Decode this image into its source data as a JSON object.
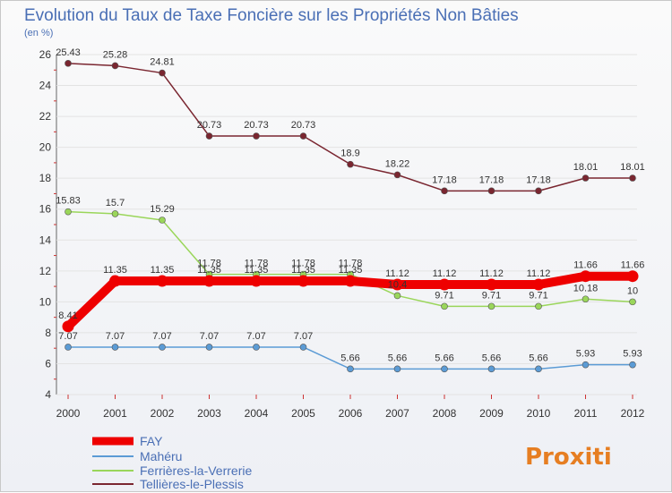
{
  "chart_data": {
    "type": "line",
    "title": "Evolution du Taux de Taxe Foncière sur les Propriétés Non Bâties",
    "unit_label": "(en %)",
    "ylim": [
      4,
      26
    ],
    "yticks": [
      4,
      6,
      8,
      10,
      12,
      14,
      16,
      18,
      20,
      22,
      24,
      26
    ],
    "categories": [
      "2000",
      "2001",
      "2002",
      "2003",
      "2004",
      "2005",
      "2006",
      "2007",
      "2008",
      "2009",
      "2010",
      "2011",
      "2012"
    ],
    "series": [
      {
        "name": "Tellières-le-Plessis",
        "color": "#7a2630",
        "values": [
          25.43,
          25.28,
          24.81,
          20.73,
          20.73,
          20.73,
          18.9,
          18.22,
          17.18,
          17.18,
          17.18,
          18.01,
          18.01
        ],
        "labels": [
          "25.43",
          "25.28",
          "24.81",
          "20.73",
          "20.73",
          "20.73",
          "18.9",
          "18.22",
          "17.18",
          "17.18",
          "17.18",
          "18.01",
          "18.01"
        ]
      },
      {
        "name": "Ferrières-la-Verrerie",
        "color": "#9ad65a",
        "values": [
          15.83,
          15.7,
          15.29,
          11.78,
          11.78,
          11.78,
          11.78,
          10.4,
          9.71,
          9.71,
          9.71,
          10.18,
          10
        ],
        "labels": [
          "15.83",
          "15.7",
          "15.29",
          "11.78",
          "11.78",
          "11.78",
          "11.78",
          "10.4",
          "9.71",
          "9.71",
          "9.71",
          "10.18",
          "10"
        ]
      },
      {
        "name": "Mahéru",
        "color": "#5b9bd5",
        "values": [
          7.07,
          7.07,
          7.07,
          7.07,
          7.07,
          7.07,
          5.66,
          5.66,
          5.66,
          5.66,
          5.66,
          5.93,
          5.93
        ],
        "labels": [
          "7.07",
          "7.07",
          "7.07",
          "7.07",
          "7.07",
          "7.07",
          "5.66",
          "5.66",
          "5.66",
          "5.66",
          "5.66",
          "5.93",
          "5.93"
        ]
      },
      {
        "name": "FAY",
        "color": "#ee0000",
        "values": [
          8.41,
          11.35,
          11.35,
          11.35,
          11.35,
          11.35,
          11.35,
          11.12,
          11.12,
          11.12,
          11.12,
          11.66,
          11.66
        ],
        "labels": [
          "8.41",
          "11.35",
          "11.35",
          "11.35",
          "11.35",
          "11.35",
          "11.35",
          "11.12",
          "11.12",
          "11.12",
          "11.12",
          "11.66",
          "11.66"
        ]
      }
    ],
    "legend": [
      "FAY",
      "Mahéru",
      "Ferrières-la-Verrerie",
      "Tellières-le-Plessis"
    ],
    "legend_position": "bottom-left"
  },
  "logo": {
    "text": "Proxiti"
  }
}
